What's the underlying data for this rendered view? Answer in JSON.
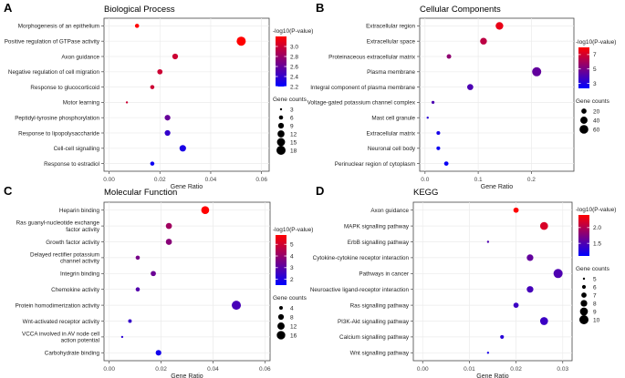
{
  "chart_data": [
    {
      "panel_label": "A",
      "title": "Biological Process",
      "type": "scatter",
      "xlabel": "Gene Ratio",
      "xlim": [
        -0.002,
        0.063
      ],
      "xticks": [
        0,
        0.02,
        0.04,
        0.06
      ],
      "xtick_labels": [
        "0.00",
        "0.02",
        "0.04",
        "0.06"
      ],
      "categories": [
        "Morphogenesis of an epithelium",
        "Positive regulation of GTPase activity",
        "Axon guidance",
        "Negative regulation of cell migration",
        "Response to glucocorticoid",
        "Motor learning",
        "Peptidyl-tyrosine phosphorylation",
        "Response to lipopolysaccharide",
        "Cell-cell signalling",
        "Response to estradiol"
      ],
      "points": [
        {
          "term": "Morphogenesis of an epithelium",
          "gene_ratio": 0.011,
          "count": 6,
          "neg_log10_p": 3.2
        },
        {
          "term": "Positive regulation of GTPase activity",
          "gene_ratio": 0.052,
          "count": 18,
          "neg_log10_p": 3.2
        },
        {
          "term": "Axon guidance",
          "gene_ratio": 0.026,
          "count": 9,
          "neg_log10_p": 3.0
        },
        {
          "term": "Negative regulation of cell migration",
          "gene_ratio": 0.02,
          "count": 8,
          "neg_log10_p": 3.0
        },
        {
          "term": "Response to glucocorticoid",
          "gene_ratio": 0.017,
          "count": 6,
          "neg_log10_p": 3.0
        },
        {
          "term": "Motor learning",
          "gene_ratio": 0.007,
          "count": 3,
          "neg_log10_p": 3.0
        },
        {
          "term": "Peptidyl-tyrosine phosphorylation",
          "gene_ratio": 0.023,
          "count": 9,
          "neg_log10_p": 2.6
        },
        {
          "term": "Response to lipopolysaccharide",
          "gene_ratio": 0.023,
          "count": 9,
          "neg_log10_p": 2.4
        },
        {
          "term": "Cell-cell signalling",
          "gene_ratio": 0.029,
          "count": 11,
          "neg_log10_p": 2.3
        },
        {
          "term": "Response to estradiol",
          "gene_ratio": 0.017,
          "count": 6,
          "neg_log10_p": 2.25
        }
      ],
      "color_legend": {
        "title": "-log10(P-value)",
        "min": 2.2,
        "max": 3.2,
        "ticks": [
          3.0,
          2.8,
          2.6,
          2.4,
          2.2
        ],
        "tick_labels": [
          "3.0",
          "2.8",
          "2.6",
          "2.4",
          "2.2"
        ]
      },
      "size_legend": {
        "title": "Gene counts",
        "values": [
          3,
          6,
          9,
          12,
          15,
          18
        ]
      },
      "size_range": [
        3,
        18
      ]
    },
    {
      "panel_label": "B",
      "title": "Cellular Components",
      "type": "scatter",
      "xlabel": "Gene Ratio",
      "xlim": [
        -0.01,
        0.28
      ],
      "xticks": [
        0,
        0.1,
        0.2
      ],
      "xtick_labels": [
        "0.0",
        "0.1",
        "0.2"
      ],
      "categories": [
        "Extracellular region",
        "Extracellular space",
        "Proteinaceous extracellular matrix",
        "Plasma membrane",
        "Integral component of plasma membrane",
        "Voltage-gated potassium channel complex",
        "Mast cell granule",
        "Extracellular matrix",
        "Neuronal cell body",
        "Perinuclear region of cytoplasm"
      ],
      "points": [
        {
          "term": "Extracellular region",
          "gene_ratio": 0.14,
          "count": 45,
          "neg_log10_p": 7.5
        },
        {
          "term": "Extracellular space",
          "gene_ratio": 0.11,
          "count": 35,
          "neg_log10_p": 6.5
        },
        {
          "term": "Proteinaceous extracellular matrix",
          "gene_ratio": 0.045,
          "count": 15,
          "neg_log10_p": 5.5
        },
        {
          "term": "Plasma membrane",
          "gene_ratio": 0.21,
          "count": 65,
          "neg_log10_p": 4.5
        },
        {
          "term": "Integral component of plasma membrane",
          "gene_ratio": 0.085,
          "count": 28,
          "neg_log10_p": 4.0
        },
        {
          "term": "Voltage-gated potassium channel complex",
          "gene_ratio": 0.015,
          "count": 6,
          "neg_log10_p": 4.0
        },
        {
          "term": "Mast cell granule",
          "gene_ratio": 0.005,
          "count": 3,
          "neg_log10_p": 3.2
        },
        {
          "term": "Extracellular matrix",
          "gene_ratio": 0.025,
          "count": 10,
          "neg_log10_p": 2.8
        },
        {
          "term": "Neuronal cell body",
          "gene_ratio": 0.025,
          "count": 10,
          "neg_log10_p": 2.6
        },
        {
          "term": "Perinuclear region of cytoplasm",
          "gene_ratio": 0.04,
          "count": 14,
          "neg_log10_p": 2.5
        }
      ],
      "color_legend": {
        "title": "-log10(P-value)",
        "min": 2.3,
        "max": 8.0,
        "ticks": [
          7,
          5,
          3
        ],
        "tick_labels": [
          "7",
          "5",
          "3"
        ]
      },
      "size_legend": {
        "title": "Gene counts",
        "values": [
          20,
          40,
          60
        ]
      },
      "size_range": [
        3,
        65
      ]
    },
    {
      "panel_label": "C",
      "title": "Molecular Function",
      "type": "scatter",
      "xlabel": "Gene Ratio",
      "xlim": [
        -0.002,
        0.062
      ],
      "xticks": [
        0,
        0.02,
        0.04,
        0.06
      ],
      "xtick_labels": [
        "0.00",
        "0.02",
        "0.04",
        "0.06"
      ],
      "categories": [
        "Heparin binding",
        "Ras guanyl-nucleotide exchange factor activity",
        "Growth factor activity",
        "Delayed rectifier potassium channel activity",
        "Integrin binding",
        "Chemokine activity",
        "Protein homodimerization activity",
        "Wnt-activated receptor activity",
        "VCCA involved in AV node cell action potential",
        "Carbohydrate binding"
      ],
      "category_lines": [
        [
          "Heparin binding"
        ],
        [
          "Ras guanyl-nucleotide exchange",
          "factor activity"
        ],
        [
          "Growth factor activity"
        ],
        [
          "Delayed rectifier potassium",
          "channel activity"
        ],
        [
          "Integrin binding"
        ],
        [
          "Chemokine activity"
        ],
        [
          "Protein homodimerization activity"
        ],
        [
          "Wnt-activated receptor activity"
        ],
        [
          "VCCA involved in AV node cell",
          "action potential"
        ],
        [
          "Carbohydrate binding"
        ]
      ],
      "points": [
        {
          "term": "Heparin binding",
          "gene_ratio": 0.037,
          "count": 14,
          "neg_log10_p": 5.8
        },
        {
          "term": "Ras guanyl-nucleotide exchange factor activity",
          "gene_ratio": 0.023,
          "count": 9,
          "neg_log10_p": 4.2
        },
        {
          "term": "Growth factor activity",
          "gene_ratio": 0.023,
          "count": 9,
          "neg_log10_p": 3.8
        },
        {
          "term": "Delayed rectifier potassium channel activity",
          "gene_ratio": 0.011,
          "count": 5,
          "neg_log10_p": 3.5
        },
        {
          "term": "Integrin binding",
          "gene_ratio": 0.017,
          "count": 7,
          "neg_log10_p": 3.3
        },
        {
          "term": "Chemokine activity",
          "gene_ratio": 0.011,
          "count": 5,
          "neg_log10_p": 2.9
        },
        {
          "term": "Protein homodimerization activity",
          "gene_ratio": 0.049,
          "count": 18,
          "neg_log10_p": 2.7
        },
        {
          "term": "Wnt-activated receptor activity",
          "gene_ratio": 0.008,
          "count": 4,
          "neg_log10_p": 2.4
        },
        {
          "term": "VCCA involved in AV node cell action potential",
          "gene_ratio": 0.005,
          "count": 2,
          "neg_log10_p": 2.2
        },
        {
          "term": "Carbohydrate binding",
          "gene_ratio": 0.019,
          "count": 8,
          "neg_log10_p": 1.8
        }
      ],
      "color_legend": {
        "title": "-log10(P-value)",
        "min": 1.5,
        "max": 5.8,
        "ticks": [
          5,
          4,
          3,
          2
        ],
        "tick_labels": [
          "5",
          "4",
          "3",
          "2"
        ]
      },
      "size_legend": {
        "title": "Gene counts",
        "values": [
          4,
          8,
          12,
          16
        ]
      },
      "size_range": [
        2,
        18
      ]
    },
    {
      "panel_label": "D",
      "title": "KEGG",
      "type": "scatter",
      "xlabel": "Gene Ratio",
      "xlim": [
        -0.002,
        0.032
      ],
      "xticks": [
        0,
        0.01,
        0.02,
        0.03
      ],
      "xtick_labels": [
        "0.00",
        "0.01",
        "0.02",
        "0.03"
      ],
      "categories": [
        "Axon guidance",
        "MAPK signalling pathway",
        "ErbB signalling pathway",
        "Cytokine-cytokine receptor interaction",
        "Pathways in cancer",
        "Neuroactive ligand-receptor interaction",
        "Ras signalling pathway",
        "PI3K-Akt signalling pathway",
        "Calcium signalling pathway",
        "Wnt signalling pathway"
      ],
      "points": [
        {
          "term": "Axon guidance",
          "gene_ratio": 0.02,
          "count": 7,
          "neg_log10_p": 2.4
        },
        {
          "term": "MAPK signalling pathway",
          "gene_ratio": 0.026,
          "count": 9,
          "neg_log10_p": 2.2
        },
        {
          "term": "ErbB signalling pathway",
          "gene_ratio": 0.014,
          "count": 5,
          "neg_log10_p": 1.5
        },
        {
          "term": "Cytokine-cytokine receptor interaction",
          "gene_ratio": 0.023,
          "count": 8,
          "neg_log10_p": 1.6
        },
        {
          "term": "Pathways in cancer",
          "gene_ratio": 0.029,
          "count": 10,
          "neg_log10_p": 1.5
        },
        {
          "term": "Neuroactive ligand-receptor interaction",
          "gene_ratio": 0.023,
          "count": 8,
          "neg_log10_p": 1.45
        },
        {
          "term": "Ras signalling pathway",
          "gene_ratio": 0.02,
          "count": 7,
          "neg_log10_p": 1.4
        },
        {
          "term": "PI3K-Akt signalling pathway",
          "gene_ratio": 0.026,
          "count": 9,
          "neg_log10_p": 1.4
        },
        {
          "term": "Calcium signalling pathway",
          "gene_ratio": 0.017,
          "count": 6,
          "neg_log10_p": 1.3
        },
        {
          "term": "Wnt signalling pathway",
          "gene_ratio": 0.014,
          "count": 5,
          "neg_log10_p": 1.2
        }
      ],
      "color_legend": {
        "title": "-log10(P-value)",
        "min": 1.1,
        "max": 2.4,
        "ticks": [
          2.0,
          1.5
        ],
        "tick_labels": [
          "2.0",
          "1.5"
        ]
      },
      "size_legend": {
        "title": "Gene counts",
        "values": [
          5,
          6,
          7,
          8,
          9,
          10
        ]
      },
      "size_range": [
        5,
        10
      ]
    }
  ],
  "colors": {
    "high": "#ff0000",
    "low": "#0000ff",
    "grid": "#ebebeb",
    "axis": "#333333"
  }
}
